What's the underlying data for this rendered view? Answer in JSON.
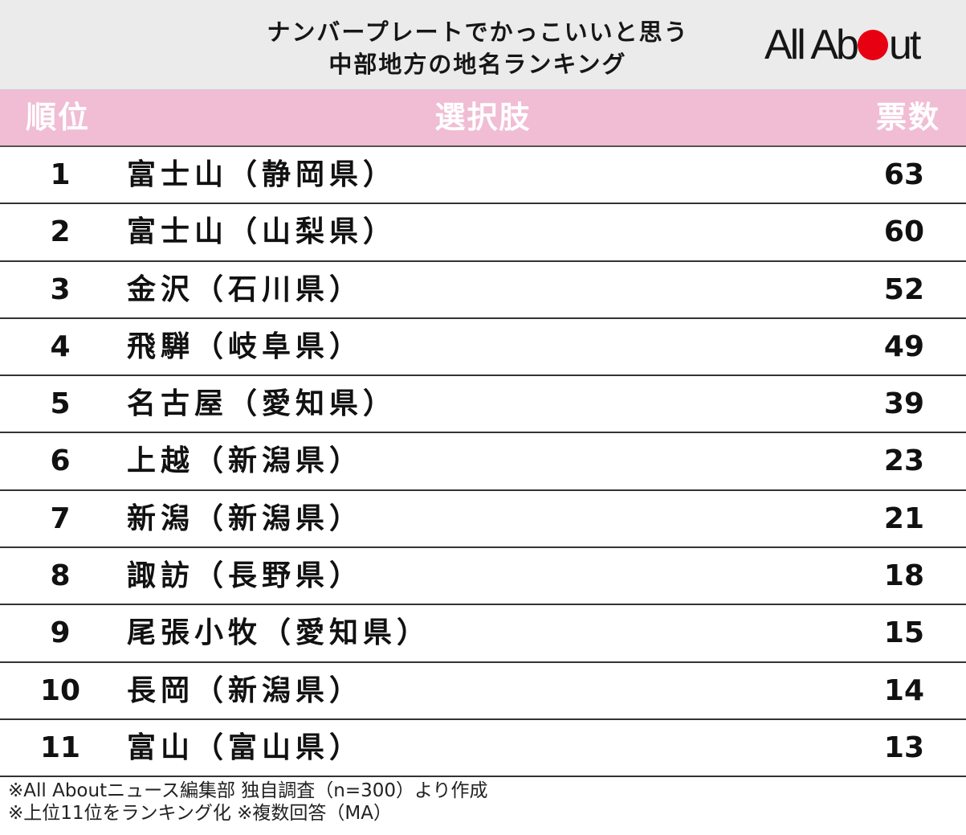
{
  "title": {
    "line1": "ナンバープレートでかっこいいと思う",
    "line2": "中部地方の地名ランキング"
  },
  "logo": {
    "text_left": "All Ab",
    "text_right": "ut",
    "brand": "All About",
    "dot_color": "#e60012"
  },
  "colors": {
    "header_bg": "#ebebeb",
    "thead_bg": "#f0bdd4",
    "thead_text": "#ffffff"
  },
  "chart_data": {
    "type": "table",
    "columns": [
      "順位",
      "選択肢",
      "票数"
    ],
    "rows": [
      {
        "rank": "1",
        "name": "富士山（静岡県）",
        "votes": 63
      },
      {
        "rank": "2",
        "name": "富士山（山梨県）",
        "votes": 60
      },
      {
        "rank": "3",
        "name": "金沢（石川県）",
        "votes": 52
      },
      {
        "rank": "4",
        "name": "飛騨（岐阜県）",
        "votes": 49
      },
      {
        "rank": "5",
        "name": "名古屋（愛知県）",
        "votes": 39
      },
      {
        "rank": "6",
        "name": "上越（新潟県）",
        "votes": 23
      },
      {
        "rank": "7",
        "name": "新潟（新潟県）",
        "votes": 21
      },
      {
        "rank": "8",
        "name": "諏訪（長野県）",
        "votes": 18
      },
      {
        "rank": "9",
        "name": "尾張小牧（愛知県）",
        "votes": 15
      },
      {
        "rank": "10",
        "name": "長岡（新潟県）",
        "votes": 14
      },
      {
        "rank": "11",
        "name": "富山（富山県）",
        "votes": 13
      }
    ]
  },
  "notes": [
    "※All Aboutニュース編集部 独自調査（n=300）より作成",
    "※上位11位をランキング化 ※複数回答（MA）"
  ]
}
